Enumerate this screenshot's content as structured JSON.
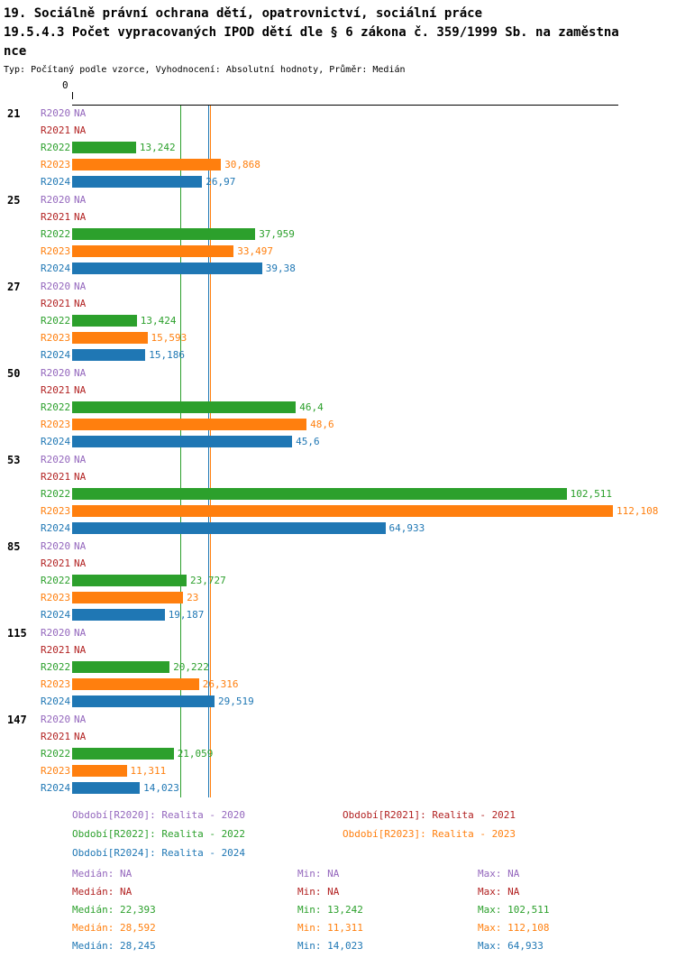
{
  "header": {
    "title_line1": "19. Sociálně právní ochrana dětí, opatrovnictví, sociální práce",
    "title_line2": "19.5.4.3 Počet vypracovaných IPOD dětí dle § 6 zákona č. 359/1999 Sb. na zaměstna",
    "title_line3": "nce",
    "subtitle": "Typ: Počítaný podle vzorce, Vyhodnocení: Absolutní hodnoty, Průměr: Medián"
  },
  "chart_data": {
    "type": "bar",
    "orientation": "horizontal",
    "x_axis": {
      "zero_label": "0",
      "range": [
        0,
        112.108
      ],
      "grid": false
    },
    "series": [
      {
        "key": "R2020",
        "color": "#9467bd",
        "legend": "Období[R2020]: Realita - 2020",
        "median": "NA",
        "min": "NA",
        "max": "NA"
      },
      {
        "key": "R2021",
        "color": "#b22222",
        "legend": "Období[R2021]: Realita - 2021",
        "median": "NA",
        "min": "NA",
        "max": "NA"
      },
      {
        "key": "R2022",
        "color": "#2ca02c",
        "legend": "Období[R2022]: Realita - 2022",
        "median": "22,393",
        "min": "13,242",
        "max": "102,511"
      },
      {
        "key": "R2023",
        "color": "#ff7f0e",
        "legend": "Období[R2023]: Realita - 2023",
        "median": "28,592",
        "min": "11,311",
        "max": "112,108"
      },
      {
        "key": "R2024",
        "color": "#1f77b4",
        "legend": "Období[R2024]: Realita - 2024",
        "median": "28,245",
        "min": "14,023",
        "max": "64,933"
      }
    ],
    "median_lines": [
      {
        "series": "R2022",
        "value": 22.393
      },
      {
        "series": "R2023",
        "value": 28.592
      },
      {
        "series": "R2024",
        "value": 28.245
      }
    ],
    "stats_labels": {
      "median": "Medián",
      "min": "Min",
      "max": "Max"
    },
    "groups": [
      {
        "label": "21",
        "rows": [
          {
            "series": "R2020",
            "value": null,
            "display": "NA"
          },
          {
            "series": "R2021",
            "value": null,
            "display": "NA"
          },
          {
            "series": "R2022",
            "value": 13.242,
            "display": "13,242"
          },
          {
            "series": "R2023",
            "value": 30.868,
            "display": "30,868"
          },
          {
            "series": "R2024",
            "value": 26.97,
            "display": "26,97"
          }
        ]
      },
      {
        "label": "25",
        "rows": [
          {
            "series": "R2020",
            "value": null,
            "display": "NA"
          },
          {
            "series": "R2021",
            "value": null,
            "display": "NA"
          },
          {
            "series": "R2022",
            "value": 37.959,
            "display": "37,959"
          },
          {
            "series": "R2023",
            "value": 33.497,
            "display": "33,497"
          },
          {
            "series": "R2024",
            "value": 39.38,
            "display": "39,38"
          }
        ]
      },
      {
        "label": "27",
        "rows": [
          {
            "series": "R2020",
            "value": null,
            "display": "NA"
          },
          {
            "series": "R2021",
            "value": null,
            "display": "NA"
          },
          {
            "series": "R2022",
            "value": 13.424,
            "display": "13,424"
          },
          {
            "series": "R2023",
            "value": 15.593,
            "display": "15,593"
          },
          {
            "series": "R2024",
            "value": 15.186,
            "display": "15,186"
          }
        ]
      },
      {
        "label": "50",
        "rows": [
          {
            "series": "R2020",
            "value": null,
            "display": "NA"
          },
          {
            "series": "R2021",
            "value": null,
            "display": "NA"
          },
          {
            "series": "R2022",
            "value": 46.4,
            "display": "46,4"
          },
          {
            "series": "R2023",
            "value": 48.6,
            "display": "48,6"
          },
          {
            "series": "R2024",
            "value": 45.6,
            "display": "45,6"
          }
        ]
      },
      {
        "label": "53",
        "rows": [
          {
            "series": "R2020",
            "value": null,
            "display": "NA"
          },
          {
            "series": "R2021",
            "value": null,
            "display": "NA"
          },
          {
            "series": "R2022",
            "value": 102.511,
            "display": "102,511"
          },
          {
            "series": "R2023",
            "value": 112.108,
            "display": "112,108"
          },
          {
            "series": "R2024",
            "value": 64.933,
            "display": "64,933"
          }
        ]
      },
      {
        "label": "85",
        "rows": [
          {
            "series": "R2020",
            "value": null,
            "display": "NA"
          },
          {
            "series": "R2021",
            "value": null,
            "display": "NA"
          },
          {
            "series": "R2022",
            "value": 23.727,
            "display": "23,727"
          },
          {
            "series": "R2023",
            "value": 23,
            "display": "23"
          },
          {
            "series": "R2024",
            "value": 19.187,
            "display": "19,187"
          }
        ]
      },
      {
        "label": "115",
        "rows": [
          {
            "series": "R2020",
            "value": null,
            "display": "NA"
          },
          {
            "series": "R2021",
            "value": null,
            "display": "NA"
          },
          {
            "series": "R2022",
            "value": 20.222,
            "display": "20,222"
          },
          {
            "series": "R2023",
            "value": 26.316,
            "display": "26,316"
          },
          {
            "series": "R2024",
            "value": 29.519,
            "display": "29,519"
          }
        ]
      },
      {
        "label": "147",
        "rows": [
          {
            "series": "R2020",
            "value": null,
            "display": "NA"
          },
          {
            "series": "R2021",
            "value": null,
            "display": "NA"
          },
          {
            "series": "R2022",
            "value": 21.059,
            "display": "21,059"
          },
          {
            "series": "R2023",
            "value": 11.311,
            "display": "11,311"
          },
          {
            "series": "R2024",
            "value": 14.023,
            "display": "14,023"
          }
        ]
      }
    ]
  }
}
